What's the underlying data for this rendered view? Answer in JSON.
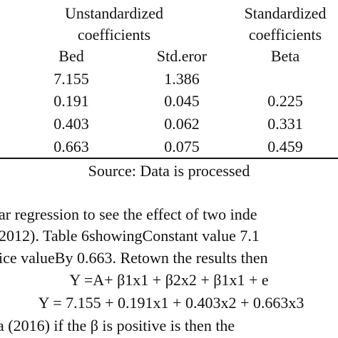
{
  "table": {
    "group_headers": [
      "Unstandardized coefficients",
      "Standardized coefficients"
    ],
    "columns": [
      "Bed",
      "Std.eror",
      "Beta"
    ],
    "rows": [
      {
        "bed": "7.155",
        "std_error": "1.386"
      },
      {
        "bed": "0.191",
        "std_error": "0.045",
        "beta": "0.225"
      },
      {
        "bed": "0.403",
        "std_error": "0.062",
        "beta": "0.331"
      },
      {
        "bed": "0.663",
        "std_error": "0.075",
        "beta": "0.459"
      }
    ],
    "source": "Source: Data is processed"
  },
  "body": {
    "lines": [
      "ar regression to see the effect of two inde",
      " 2012). Table 6showingConstant value 7.1",
      "ice valueBy 0.663. Retown the results then"
    ],
    "equations": [
      "Y =A+ β1x1 + β2x2 + β1x1 + e",
      "Y = 7.155 + 0.191x1 + 0.403x2 + 0.663x3"
    ],
    "last_line": "a (2016) if the β is positive is then the"
  }
}
